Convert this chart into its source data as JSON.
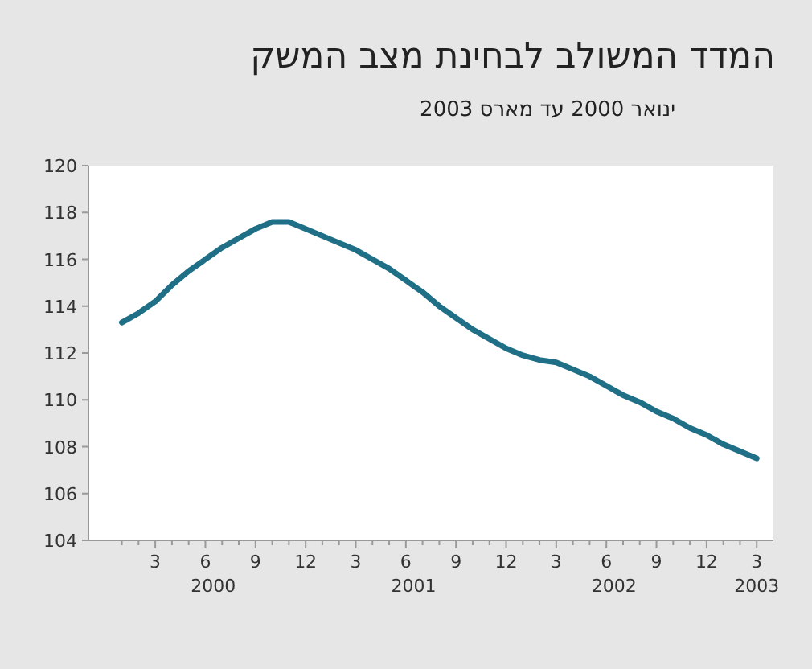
{
  "chart_data": {
    "type": "line",
    "title": "המדד המשולב לבחינת מצב המשק",
    "subtitle": "ינואר 2000 עד מארס 2003",
    "x": [
      "2000-01",
      "2000-02",
      "2000-03",
      "2000-04",
      "2000-05",
      "2000-06",
      "2000-07",
      "2000-08",
      "2000-09",
      "2000-10",
      "2000-11",
      "2000-12",
      "2001-01",
      "2001-02",
      "2001-03",
      "2001-04",
      "2001-05",
      "2001-06",
      "2001-07",
      "2001-08",
      "2001-09",
      "2001-10",
      "2001-11",
      "2001-12",
      "2002-01",
      "2002-02",
      "2002-03",
      "2002-04",
      "2002-05",
      "2002-06",
      "2002-07",
      "2002-08",
      "2002-09",
      "2002-10",
      "2002-11",
      "2002-12",
      "2003-01",
      "2003-02",
      "2003-03"
    ],
    "values": [
      113.3,
      113.7,
      114.2,
      114.9,
      115.5,
      116.0,
      116.5,
      116.9,
      117.3,
      117.6,
      117.6,
      117.3,
      117.0,
      116.7,
      116.4,
      116.0,
      115.6,
      115.1,
      114.6,
      114.0,
      113.5,
      113.0,
      112.6,
      112.2,
      111.9,
      111.7,
      111.6,
      111.3,
      111.0,
      110.6,
      110.2,
      109.9,
      109.5,
      109.2,
      108.8,
      108.5,
      108.1,
      107.8,
      107.5
    ],
    "color": "#1f6f86",
    "xlim": [
      "1999-11",
      "2003-04"
    ],
    "ylim": [
      104,
      120
    ],
    "yticks": [
      104,
      106,
      108,
      110,
      112,
      114,
      116,
      118,
      120
    ],
    "xticks": [
      {
        "value": "2000-01",
        "label": null
      },
      {
        "value": "2000-02",
        "label": null
      },
      {
        "value": "2000-03",
        "label": "3"
      },
      {
        "value": "2000-04",
        "label": null
      },
      {
        "value": "2000-05",
        "label": null
      },
      {
        "value": "2000-06",
        "label": "6"
      },
      {
        "value": "2000-07",
        "label": null
      },
      {
        "value": "2000-08",
        "label": null
      },
      {
        "value": "2000-09",
        "label": "9"
      },
      {
        "value": "2000-10",
        "label": null
      },
      {
        "value": "2000-11",
        "label": null
      },
      {
        "value": "2000-12",
        "label": "12"
      },
      {
        "value": "2001-01",
        "label": null
      },
      {
        "value": "2001-02",
        "label": null
      },
      {
        "value": "2001-03",
        "label": "3"
      },
      {
        "value": "2001-04",
        "label": null
      },
      {
        "value": "2001-05",
        "label": null
      },
      {
        "value": "2001-06",
        "label": "6"
      },
      {
        "value": "2001-07",
        "label": null
      },
      {
        "value": "2001-08",
        "label": null
      },
      {
        "value": "2001-09",
        "label": "9"
      },
      {
        "value": "2001-10",
        "label": null
      },
      {
        "value": "2001-11",
        "label": null
      },
      {
        "value": "2001-12",
        "label": "12"
      },
      {
        "value": "2002-01",
        "label": null
      },
      {
        "value": "2002-02",
        "label": null
      },
      {
        "value": "2002-03",
        "label": "3"
      },
      {
        "value": "2002-04",
        "label": null
      },
      {
        "value": "2002-05",
        "label": null
      },
      {
        "value": "2002-06",
        "label": "6"
      },
      {
        "value": "2002-07",
        "label": null
      },
      {
        "value": "2002-08",
        "label": null
      },
      {
        "value": "2002-09",
        "label": "9"
      },
      {
        "value": "2002-10",
        "label": null
      },
      {
        "value": "2002-11",
        "label": null
      },
      {
        "value": "2002-12",
        "label": "12"
      },
      {
        "value": "2003-01",
        "label": null
      },
      {
        "value": "2003-02",
        "label": null
      },
      {
        "value": "2003-03",
        "label": "3"
      }
    ],
    "annotations": [
      "2000",
      "2001",
      "2002",
      "2003"
    ]
  }
}
